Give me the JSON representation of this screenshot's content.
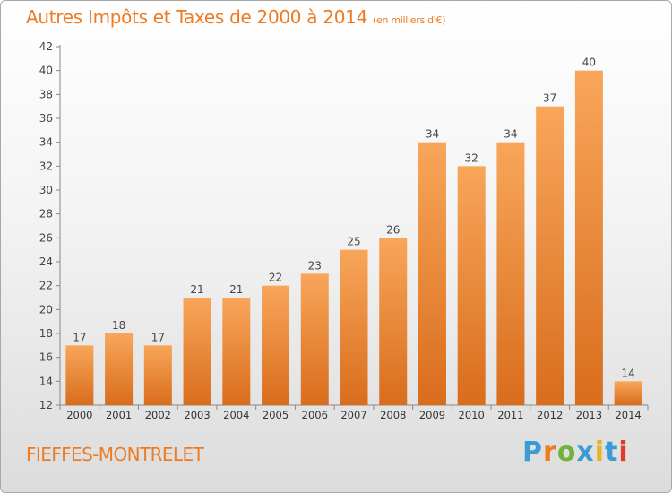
{
  "header": {
    "title": "Autres Impôts et Taxes de 2000 à 2014",
    "unit": "(en milliers d'€)"
  },
  "footer": {
    "town": "FIEFFES-MONTRELET",
    "logo_text": "Proxiti",
    "logo_colors": [
      "#3b9bd6",
      "#ee7b22",
      "#6fb33a",
      "#3b9bd6",
      "#e2b620",
      "#3b9bd6",
      "#e03a2f"
    ]
  },
  "colors": {
    "bar_light": "#f8a65a",
    "bar_dark": "#d96d1c",
    "accent": "#ee7b22"
  },
  "chart_data": {
    "type": "bar",
    "title": "Autres Impôts et Taxes de 2000 à 2014",
    "subtitle": "(en milliers d'€)",
    "xlabel": "",
    "ylabel": "",
    "categories": [
      "2000",
      "2001",
      "2002",
      "2003",
      "2004",
      "2005",
      "2006",
      "2007",
      "2008",
      "2009",
      "2010",
      "2011",
      "2012",
      "2013",
      "2014"
    ],
    "values": [
      17,
      18,
      17,
      21,
      21,
      22,
      23,
      25,
      26,
      34,
      32,
      34,
      37,
      40,
      14
    ],
    "data_labels": [
      "17",
      "18",
      "17",
      "21",
      "21",
      "22",
      "23",
      "25",
      "26",
      "34",
      "32",
      "34",
      "37",
      "40",
      "14"
    ],
    "ylim": [
      12,
      42
    ],
    "yticks": [
      "12",
      "14",
      "16",
      "18",
      "20",
      "22",
      "24",
      "26",
      "28",
      "30",
      "32",
      "34",
      "36",
      "38",
      "40",
      "42"
    ],
    "grid": false,
    "legend": "none"
  }
}
